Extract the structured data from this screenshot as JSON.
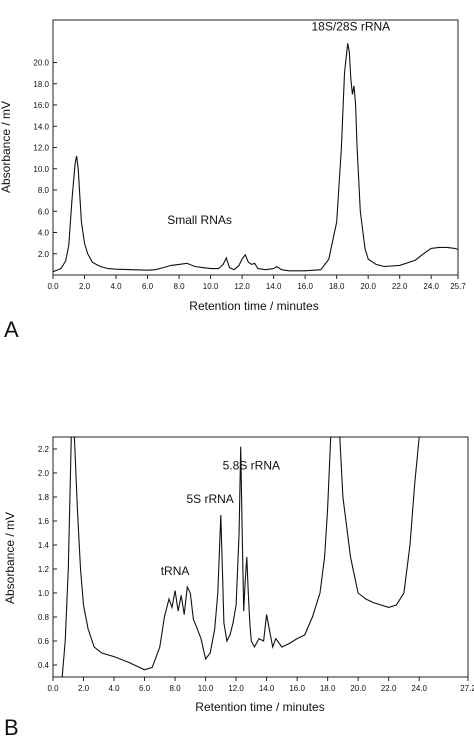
{
  "chart_data": [
    {
      "panel": "A",
      "type": "line",
      "xlabel": "Retention time / minutes",
      "ylabel": "Absorbance / mV",
      "xlim": [
        0,
        25.7
      ],
      "ylim": [
        0,
        24
      ],
      "xticks": [
        "0.0",
        "2.0",
        "4.0",
        "6.0",
        "8.0",
        "10.0",
        "12.0",
        "14.0",
        "16.0",
        "18.0",
        "20.0",
        "22.0",
        "24.0",
        "25.7"
      ],
      "xtick_values": [
        0,
        2,
        4,
        6,
        8,
        10,
        12,
        14,
        16,
        18,
        20,
        22,
        24,
        25.7
      ],
      "yticks": [
        "2.0",
        "4.0",
        "6.0",
        "8.0",
        "10.0",
        "12.0",
        "14.0",
        "16.0",
        "18.0",
        "20.0"
      ],
      "ytick_values": [
        2,
        4,
        6,
        8,
        10,
        12,
        14,
        16,
        18,
        20
      ],
      "annotations": [
        {
          "text": "Small RNAs",
          "x": 9.3,
          "y": 4.8
        },
        {
          "text": "18S/28S rRNA",
          "x": 18.9,
          "y": 23.0
        }
      ],
      "series": [
        {
          "x": [
            0,
            0.5,
            0.8,
            1.0,
            1.2,
            1.4,
            1.5,
            1.6,
            1.7,
            1.8,
            2.0,
            2.2,
            2.5,
            3.0,
            3.5,
            4.0,
            5.0,
            6.0,
            6.5,
            7.0,
            7.5,
            8.0,
            8.5,
            9.0,
            9.5,
            10.0,
            10.5,
            10.8,
            11.0,
            11.2,
            11.5,
            11.8,
            12.0,
            12.2,
            12.4,
            12.6,
            12.8,
            13.0,
            13.5,
            14.0,
            14.2,
            14.5,
            15.0,
            16.0,
            17.0,
            17.5,
            18.0,
            18.3,
            18.5,
            18.7,
            18.8,
            18.9,
            19.0,
            19.1,
            19.2,
            19.3,
            19.5,
            19.8,
            20.0,
            20.5,
            21.0,
            22.0,
            23.0,
            23.5,
            24.0,
            24.5,
            25.0,
            25.5,
            25.7
          ],
          "y": [
            0.3,
            0.6,
            1.3,
            2.8,
            7.0,
            10.5,
            11.2,
            10.0,
            7.5,
            5.0,
            3.0,
            2.0,
            1.2,
            0.8,
            0.6,
            0.55,
            0.5,
            0.45,
            0.5,
            0.7,
            0.9,
            1.0,
            1.1,
            0.8,
            0.7,
            0.6,
            0.6,
            1.0,
            1.6,
            0.7,
            0.5,
            0.9,
            1.5,
            1.9,
            1.2,
            1.0,
            1.1,
            0.6,
            0.5,
            0.6,
            0.8,
            0.5,
            0.4,
            0.4,
            0.5,
            1.5,
            5.0,
            12.0,
            19.0,
            21.8,
            21.0,
            18.5,
            17.0,
            17.8,
            16.0,
            12.0,
            6.0,
            2.5,
            1.5,
            1.0,
            0.8,
            0.9,
            1.4,
            2.0,
            2.5,
            2.6,
            2.6,
            2.5,
            2.4
          ]
        }
      ]
    },
    {
      "panel": "B",
      "type": "line",
      "xlabel": "Retention time / minutes",
      "ylabel": "Absorbance / mV",
      "xlim": [
        0,
        27.2
      ],
      "ylim": [
        0.3,
        2.3
      ],
      "xticks": [
        "0.0",
        "2.0",
        "4.0",
        "6.0",
        "8.0",
        "10.0",
        "12.0",
        "14.0",
        "16.0",
        "18.0",
        "20.0",
        "22.0",
        "24.0",
        "27.2"
      ],
      "xtick_values": [
        0,
        2,
        4,
        6,
        8,
        10,
        12,
        14,
        16,
        18,
        20,
        22,
        24,
        27.2
      ],
      "yticks": [
        "0.4",
        "0.6",
        "0.8",
        "1.0",
        "1.2",
        "1.4",
        "1.6",
        "1.8",
        "2.0",
        "2.2"
      ],
      "ytick_values": [
        0.4,
        0.6,
        0.8,
        1.0,
        1.2,
        1.4,
        1.6,
        1.8,
        2.0,
        2.2
      ],
      "annotations": [
        {
          "text": "tRNA",
          "x": 8.0,
          "y": 1.15
        },
        {
          "text": "5S rRNA",
          "x": 10.3,
          "y": 1.75
        },
        {
          "text": "5.8S rRNA",
          "x": 13.0,
          "y": 2.03
        }
      ],
      "series": [
        {
          "x": [
            0.6,
            0.8,
            1.0,
            1.2,
            1.4,
            1.6,
            1.8,
            2.0,
            2.3,
            2.7,
            3.2,
            4.0,
            5.0,
            6.0,
            6.5,
            7.0,
            7.3,
            7.6,
            7.8,
            8.0,
            8.2,
            8.4,
            8.6,
            8.8,
            9.0,
            9.2,
            9.4,
            9.7,
            10.0,
            10.3,
            10.6,
            10.8,
            11.0,
            11.1,
            11.2,
            11.4,
            11.6,
            11.8,
            12.0,
            12.2,
            12.3,
            12.4,
            12.5,
            12.6,
            12.7,
            12.8,
            12.9,
            13.0,
            13.2,
            13.5,
            13.8,
            14.0,
            14.2,
            14.4,
            14.6,
            15.0,
            15.5,
            16.0,
            16.5,
            17.0,
            17.5,
            17.8,
            18.0,
            18.2,
            18.4,
            18.6,
            18.8,
            19.0,
            19.5,
            20.0,
            20.5,
            21.0,
            21.5,
            22.0,
            22.5,
            23.0,
            23.4,
            23.7,
            24.0
          ],
          "y": [
            0.3,
            0.6,
            1.2,
            2.3,
            2.3,
            1.7,
            1.2,
            0.9,
            0.7,
            0.55,
            0.5,
            0.47,
            0.42,
            0.36,
            0.38,
            0.55,
            0.8,
            0.95,
            0.88,
            1.02,
            0.85,
            0.98,
            0.82,
            1.05,
            1.0,
            0.78,
            0.72,
            0.62,
            0.45,
            0.5,
            0.7,
            1.0,
            1.65,
            1.2,
            0.75,
            0.6,
            0.65,
            0.75,
            0.9,
            1.5,
            2.22,
            1.5,
            0.85,
            1.1,
            1.3,
            1.0,
            0.75,
            0.6,
            0.55,
            0.62,
            0.6,
            0.82,
            0.68,
            0.55,
            0.62,
            0.55,
            0.58,
            0.62,
            0.65,
            0.8,
            1.0,
            1.3,
            1.7,
            2.3,
            2.3,
            2.3,
            2.3,
            1.8,
            1.3,
            1.0,
            0.95,
            0.92,
            0.9,
            0.88,
            0.9,
            1.0,
            1.4,
            1.9,
            2.3
          ]
        }
      ]
    }
  ],
  "panels": {
    "a": {
      "label": "A"
    },
    "b": {
      "label": "B"
    }
  }
}
